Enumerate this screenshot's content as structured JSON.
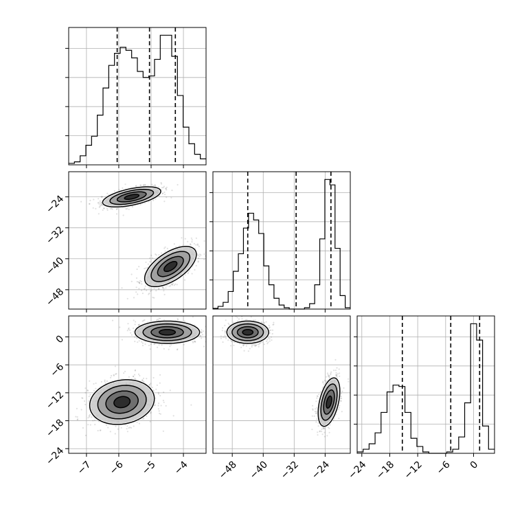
{
  "chart_data": {
    "type": "corner",
    "grid": true,
    "parameters": [
      {
        "ticks": [
          -7,
          -6,
          -5,
          -4
        ],
        "tick_labels": [
          "−7",
          "−6",
          "−5",
          "−4"
        ],
        "range": [
          -7.55,
          -3.3
        ],
        "quantiles": [
          -6.05,
          -5.05,
          -4.25
        ],
        "hist_counts": [
          1,
          2,
          6,
          13,
          19,
          33,
          51,
          66,
          74,
          78,
          76,
          71,
          62,
          58,
          59,
          70,
          86,
          86,
          72,
          46,
          25,
          14,
          7,
          4
        ]
      },
      {
        "ticks": [
          -48,
          -40,
          -32,
          -24
        ],
        "tick_labels": [
          "−48",
          "−40",
          "−32",
          "−24"
        ],
        "range": [
          -53.0,
          -17.5
        ],
        "quantiles": [
          -44.0,
          -31.5,
          -22.5
        ],
        "hist_counts": [
          0.5,
          2,
          5,
          13,
          28,
          41,
          60,
          71,
          66,
          56,
          32,
          18,
          8,
          3,
          1,
          0,
          0,
          0,
          1,
          4,
          18,
          52,
          96,
          92,
          45,
          10,
          1
        ]
      },
      {
        "ticks": [
          -24,
          -18,
          -12,
          -6,
          0
        ],
        "tick_labels": [
          "−24",
          "−18",
          "−12",
          "−6",
          "0"
        ],
        "range": [
          -25.0,
          4.5
        ],
        "quantiles": [
          -15.3,
          -4.9,
          1.3
        ],
        "hist_counts": [
          1,
          3,
          7,
          15,
          30,
          45,
          50,
          49,
          30,
          11,
          5,
          1,
          0,
          0,
          0,
          1,
          3,
          12,
          37,
          95,
          83,
          20,
          3
        ]
      }
    ],
    "pairs": [
      {
        "x_param": 0,
        "y_param": 1,
        "modes": [
          {
            "center": [
              -5.6,
              -24.0
            ],
            "spread": [
              0.45,
              1.3
            ],
            "rho": 0.55,
            "weight": 0.5
          },
          {
            "center": [
              -4.4,
              -42.0
            ],
            "spread": [
              0.4,
              2.6
            ],
            "rho": 0.6,
            "weight": 0.5
          }
        ]
      },
      {
        "x_param": 0,
        "y_param": 2,
        "modes": [
          {
            "center": [
              -4.5,
              1.0
            ],
            "spread": [
              0.5,
              1.2
            ],
            "rho": 0.0,
            "weight": 0.5
          },
          {
            "center": [
              -5.9,
              -14.0
            ],
            "spread": [
              0.5,
              2.4
            ],
            "rho": 0.15,
            "weight": 0.5
          }
        ]
      },
      {
        "x_param": 1,
        "y_param": 2,
        "modes": [
          {
            "center": [
              -44.0,
              1.0
            ],
            "spread": [
              2.7,
              1.2
            ],
            "rho": 0.0,
            "weight": 0.5
          },
          {
            "center": [
              -23.0,
              -14.0
            ],
            "spread": [
              1.4,
              2.6
            ],
            "rho": 0.45,
            "weight": 0.5
          }
        ]
      }
    ],
    "contour_levels": [
      0.5,
      1.0,
      1.5,
      2.0
    ]
  }
}
